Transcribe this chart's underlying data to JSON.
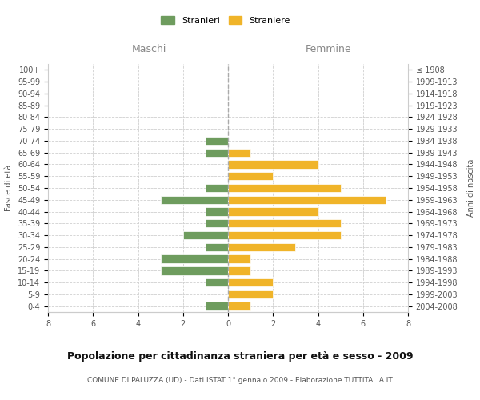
{
  "age_groups": [
    "0-4",
    "5-9",
    "10-14",
    "15-19",
    "20-24",
    "25-29",
    "30-34",
    "35-39",
    "40-44",
    "45-49",
    "50-54",
    "55-59",
    "60-64",
    "65-69",
    "70-74",
    "75-79",
    "80-84",
    "85-89",
    "90-94",
    "95-99",
    "100+"
  ],
  "birth_years": [
    "2004-2008",
    "1999-2003",
    "1994-1998",
    "1989-1993",
    "1984-1988",
    "1979-1983",
    "1974-1978",
    "1969-1973",
    "1964-1968",
    "1959-1963",
    "1954-1958",
    "1949-1953",
    "1944-1948",
    "1939-1943",
    "1934-1938",
    "1929-1933",
    "1924-1928",
    "1919-1923",
    "1914-1918",
    "1909-1913",
    "≤ 1908"
  ],
  "males": [
    1,
    0,
    1,
    3,
    3,
    1,
    2,
    1,
    1,
    3,
    1,
    0,
    0,
    1,
    1,
    0,
    0,
    0,
    0,
    0,
    0
  ],
  "females": [
    1,
    2,
    2,
    1,
    1,
    3,
    5,
    5,
    4,
    7,
    5,
    2,
    4,
    1,
    0,
    0,
    0,
    0,
    0,
    0,
    0
  ],
  "male_color": "#6e9c5e",
  "female_color": "#f0b429",
  "title": "Popolazione per cittadinanza straniera per età e sesso - 2009",
  "subtitle": "COMUNE DI PALUZZA (UD) - Dati ISTAT 1° gennaio 2009 - Elaborazione TUTTITALIA.IT",
  "xlabel_left": "Maschi",
  "xlabel_right": "Femmine",
  "ylabel_left": "Fasce di età",
  "ylabel_right": "Anni di nascita",
  "legend_male": "Stranieri",
  "legend_female": "Straniere",
  "xlim": 8,
  "background_color": "#ffffff",
  "grid_color": "#d0d0d0"
}
